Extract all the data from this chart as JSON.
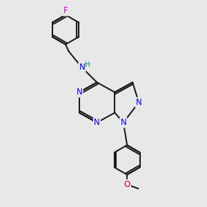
{
  "bg_color": "#e8e8e8",
  "bond_color": "#1a1a1a",
  "n_color": "#0000dd",
  "f_color": "#cc00cc",
  "o_color": "#cc0000",
  "h_color": "#008080",
  "line_width": 1.5,
  "font_size": 8.5,
  "figsize": [
    3.0,
    3.0
  ],
  "dpi": 100,
  "xlim": [
    0,
    10
  ],
  "ylim": [
    0,
    10
  ]
}
